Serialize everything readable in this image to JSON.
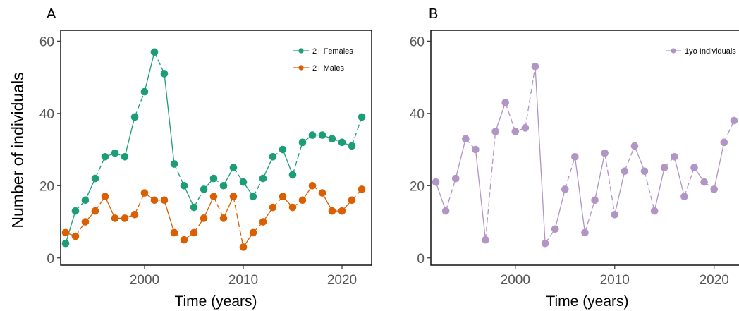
{
  "panels": {
    "a_label": "A",
    "b_label": "B",
    "shared_ylabel": "Number of individuals"
  },
  "chart_data": [
    {
      "type": "line",
      "panel": "A",
      "xlabel": "Time (years)",
      "ylabel": "Number of individuals",
      "xlim": [
        1991.5,
        2023
      ],
      "ylim": [
        -2,
        63
      ],
      "xticks": [
        2000,
        2010,
        2020
      ],
      "yticks": [
        0,
        20,
        40,
        60
      ],
      "grid": false,
      "legend_position": "top-right",
      "x": [
        1992,
        1993,
        1994,
        1995,
        1996,
        1997,
        1998,
        1999,
        2000,
        2001,
        2002,
        2003,
        2004,
        2005,
        2006,
        2007,
        2008,
        2009,
        2010,
        2011,
        2012,
        2013,
        2014,
        2015,
        2016,
        2017,
        2018,
        2019,
        2020,
        2021,
        2022
      ],
      "series": [
        {
          "name": "2+ Females",
          "color": "#1b9e77",
          "values": [
            4,
            13,
            16,
            22,
            28,
            29,
            28,
            39,
            46,
            57,
            51,
            26,
            20,
            14,
            19,
            22,
            20,
            25,
            21,
            17,
            22,
            28,
            30,
            23,
            32,
            34,
            34,
            33,
            32,
            31,
            39
          ]
        },
        {
          "name": "2+ Males",
          "color": "#d95f02",
          "values": [
            7,
            6,
            10,
            13,
            17,
            11,
            11,
            12,
            18,
            16,
            16,
            7,
            5,
            7,
            11,
            17,
            11,
            17,
            3,
            7,
            10,
            14,
            17,
            14,
            16,
            20,
            18,
            13,
            13,
            16,
            19
          ]
        }
      ]
    },
    {
      "type": "line",
      "panel": "B",
      "xlabel": "Time (years)",
      "ylabel": "",
      "xlim": [
        1991.5,
        2023
      ],
      "ylim": [
        -2,
        63
      ],
      "xticks": [
        2000,
        2010,
        2020
      ],
      "yticks": [
        0,
        20,
        40,
        60
      ],
      "grid": false,
      "legend_position": "top-right",
      "x": [
        1992,
        1993,
        1994,
        1995,
        1996,
        1997,
        1998,
        1999,
        2000,
        2001,
        2002,
        2003,
        2004,
        2005,
        2006,
        2007,
        2008,
        2009,
        2010,
        2011,
        2012,
        2013,
        2014,
        2015,
        2016,
        2017,
        2018,
        2019,
        2020,
        2021,
        2022
      ],
      "series": [
        {
          "name": "1yo Individuals",
          "color": "#b195c5",
          "values": [
            21,
            13,
            22,
            33,
            30,
            5,
            35,
            43,
            35,
            36,
            53,
            4,
            8,
            19,
            28,
            7,
            16,
            29,
            12,
            24,
            31,
            24,
            13,
            25,
            28,
            17,
            25,
            21,
            19,
            32,
            38
          ]
        }
      ]
    }
  ]
}
